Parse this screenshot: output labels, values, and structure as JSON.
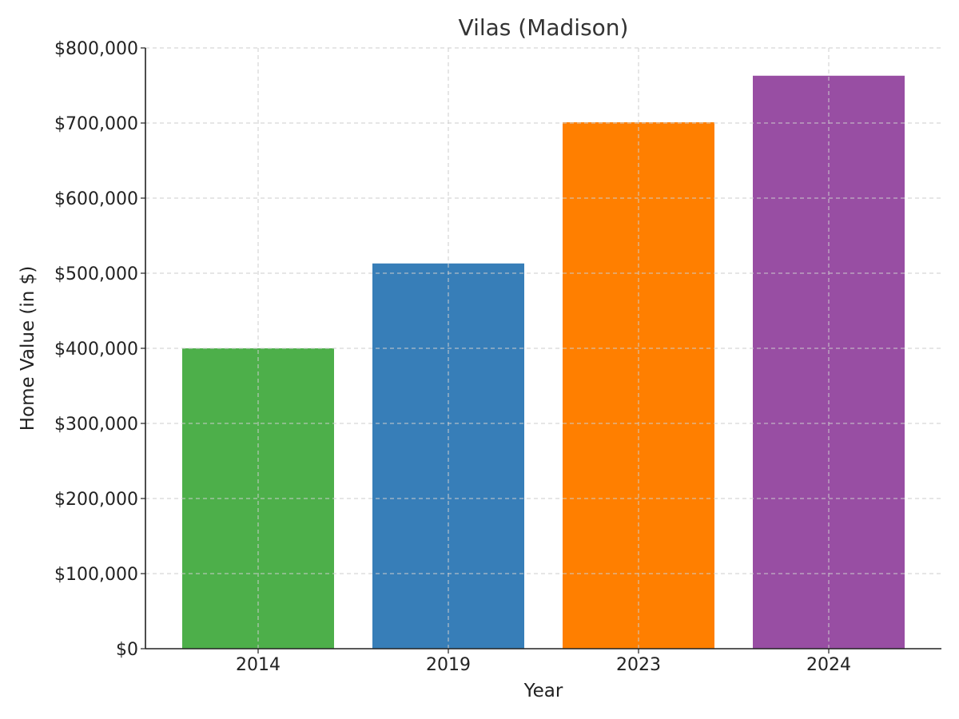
{
  "chart_data": {
    "type": "bar",
    "title": "Vilas (Madison)",
    "xlabel": "Year",
    "ylabel": "Home Value (in $)",
    "categories": [
      "2014",
      "2019",
      "2023",
      "2024"
    ],
    "values": [
      400000,
      513000,
      701000,
      763000
    ],
    "colors": [
      "#4daf4a",
      "#377eb8",
      "#ff7f00",
      "#984ea3"
    ],
    "ylim": [
      0,
      800000
    ],
    "yticks": [
      0,
      100000,
      200000,
      300000,
      400000,
      500000,
      600000,
      700000,
      800000
    ],
    "ytick_labels": [
      "$0",
      "$100,000",
      "$200,000",
      "$300,000",
      "$400,000",
      "$500,000",
      "$600,000",
      "$700,000",
      "$800,000"
    ],
    "grid": true,
    "legend": "none"
  }
}
